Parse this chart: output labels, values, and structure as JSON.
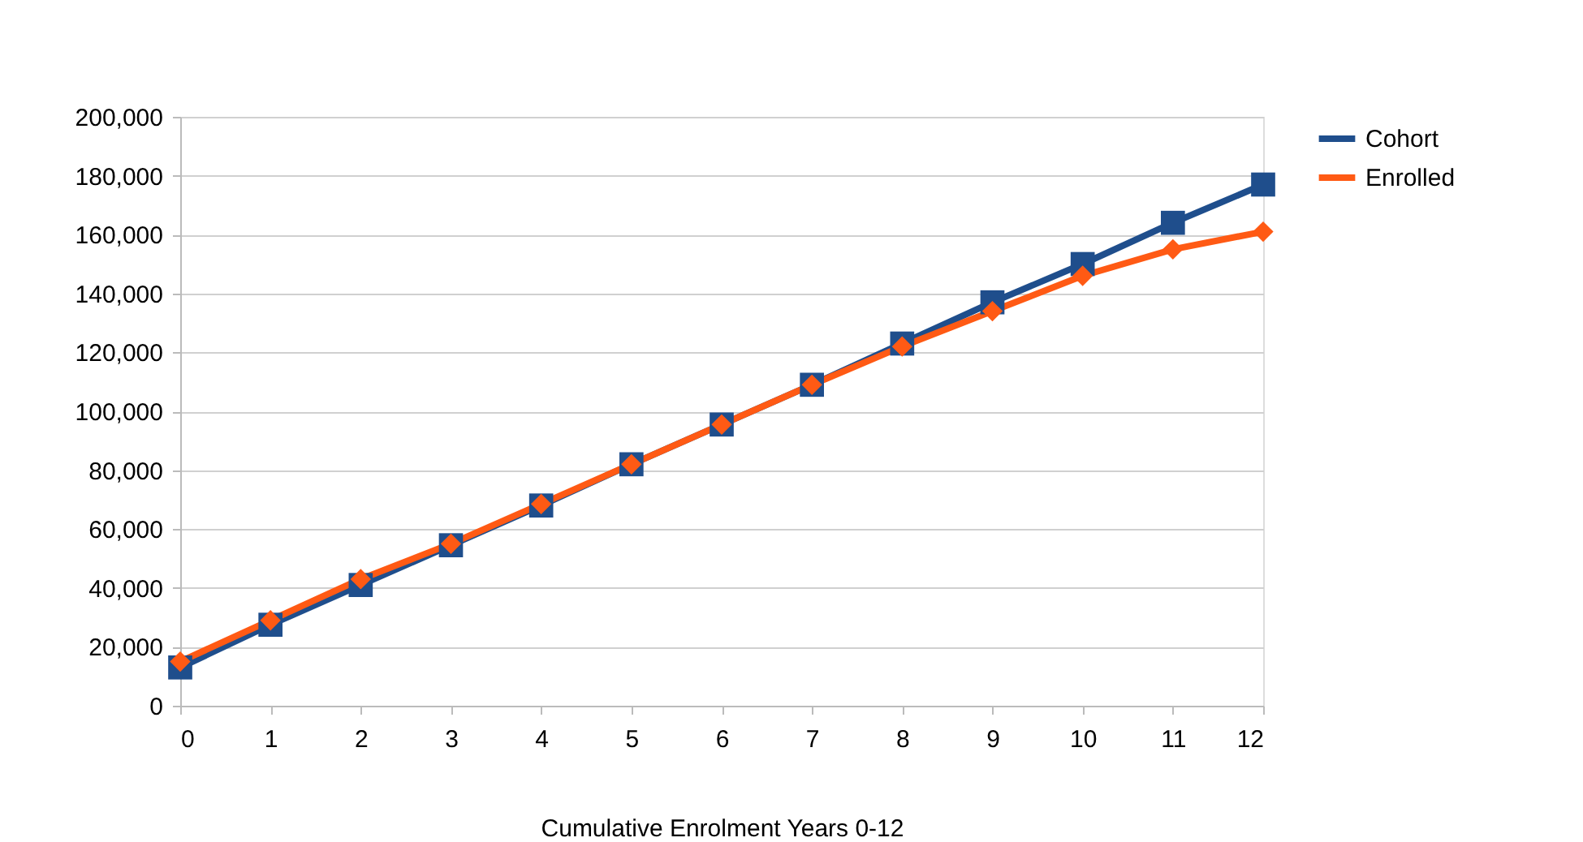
{
  "chart_data": {
    "type": "line",
    "xlabel": "Cumulative Enrolment Years 0-12",
    "x": [
      0,
      1,
      2,
      3,
      4,
      5,
      6,
      7,
      8,
      9,
      10,
      11,
      12
    ],
    "series": [
      {
        "name": "Cohort",
        "color": "#1f4e8c",
        "marker": "square",
        "values": [
          13000,
          27500,
          41000,
          54500,
          68000,
          82000,
          95500,
          109000,
          123000,
          137000,
          150000,
          164000,
          177000
        ]
      },
      {
        "name": "Enrolled",
        "color": "#ff5a14",
        "marker": "diamond",
        "values": [
          15000,
          29000,
          43000,
          55000,
          68500,
          82000,
          95500,
          109000,
          122000,
          134000,
          146000,
          155000,
          161000
        ]
      }
    ],
    "xlim": [
      0,
      12
    ],
    "xticks": [
      0,
      1,
      2,
      3,
      4,
      5,
      6,
      7,
      8,
      9,
      10,
      11,
      12
    ],
    "ylim": [
      0,
      200000
    ],
    "yticks": [
      0,
      {
        "value": 20000,
        "label": "20,000"
      },
      {
        "value": 40000,
        "label": "40,000"
      },
      {
        "value": 60000,
        "label": "60,000"
      },
      {
        "value": 80000,
        "label": "80,000"
      },
      {
        "value": 100000,
        "label": "100,000"
      },
      {
        "value": 120000,
        "label": "120,000"
      },
      {
        "value": 140000,
        "label": "140,000"
      },
      {
        "value": 160000,
        "label": "160,000"
      },
      {
        "value": 180000,
        "label": "180,000"
      },
      {
        "value": 200000,
        "label": "200,000"
      }
    ],
    "grid": "y",
    "legend": "right",
    "line_style": "solid"
  }
}
